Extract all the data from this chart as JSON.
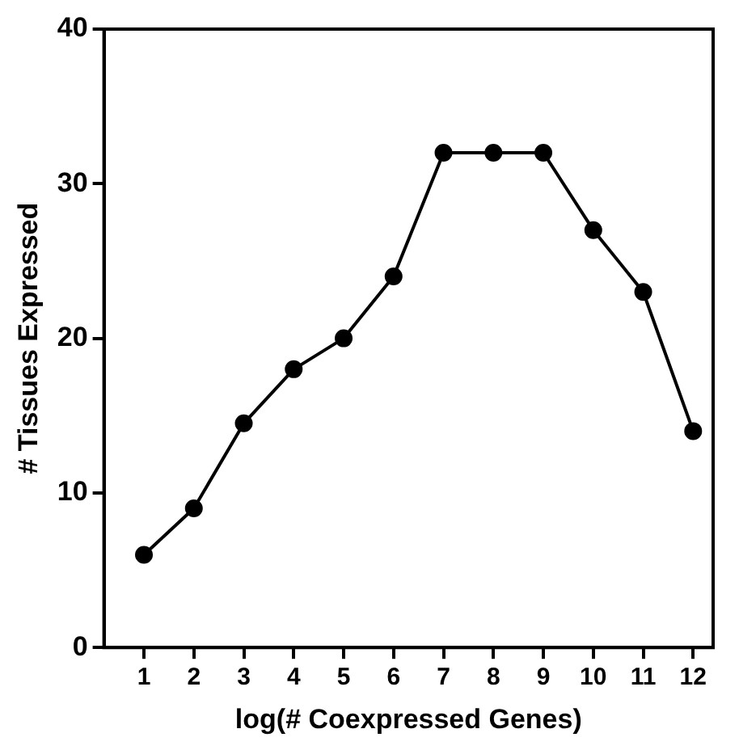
{
  "chart_data": {
    "type": "line",
    "xlabel": "log(# Coexpressed Genes)",
    "ylabel": "# Tissues Expressed",
    "x": [
      1,
      2,
      3,
      4,
      5,
      6,
      7,
      8,
      9,
      10,
      11,
      12
    ],
    "series": [
      {
        "color": "#000000",
        "values": [
          6,
          9,
          14.5,
          18,
          20,
          24,
          32,
          32,
          32,
          27,
          23,
          14
        ]
      }
    ],
    "xlim": [
      0.2,
      12.4
    ],
    "xticks": [
      1,
      2,
      3,
      4,
      5,
      6,
      7,
      8,
      9,
      10,
      11,
      12
    ],
    "ylim": [
      0,
      40
    ],
    "yticks": [
      0,
      10,
      20,
      30,
      40
    ],
    "grid": false,
    "legend": false,
    "marker": "circle",
    "line_style": "solid"
  }
}
